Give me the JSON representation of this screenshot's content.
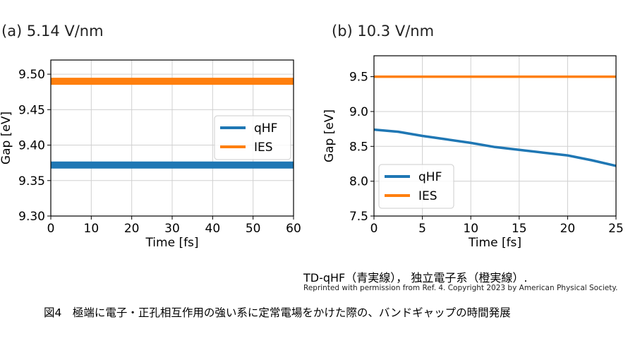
{
  "panels": {
    "a": {
      "title": "(a) 5.14 V/nm"
    },
    "b": {
      "title": "(b) 10.3 V/nm"
    }
  },
  "caption": {
    "main": "TD-qHF（青実線）， 独立電子系（橙実線）.",
    "credit": "Reprinted with permission from Ref. 4. Copyright 2023 by American Physical Society.",
    "figure": "図4　極端に電子・正孔相互作用の強い系に定常電場をかけた際の、バンドギャップの時間発展"
  },
  "colors": {
    "qHF": "#1f77b4",
    "IES": "#ff7f0e"
  },
  "chart_data": [
    {
      "type": "line",
      "title": "(a) 5.14 V/nm",
      "xlabel": "Time [fs]",
      "ylabel": "Gap [eV]",
      "xlim": [
        0,
        60
      ],
      "ylim": [
        9.3,
        9.52
      ],
      "xticks": [
        "0",
        "10",
        "20",
        "30",
        "40",
        "50",
        "60"
      ],
      "yticks": [
        "9.30",
        "9.35",
        "9.40",
        "9.45",
        "9.50"
      ],
      "xtick_values": [
        0,
        10,
        20,
        30,
        40,
        50,
        60
      ],
      "ytick_values": [
        9.3,
        9.35,
        9.4,
        9.45,
        9.5
      ],
      "grid": true,
      "legend": "center-right",
      "series": [
        {
          "name": "qHF",
          "x": [
            0,
            5,
            10,
            15,
            20,
            25,
            30,
            35,
            40,
            45,
            50,
            55,
            60
          ],
          "values": [
            9.372,
            9.372,
            9.372,
            9.372,
            9.372,
            9.372,
            9.372,
            9.372,
            9.372,
            9.372,
            9.372,
            9.372,
            9.372
          ]
        },
        {
          "name": "IES",
          "x": [
            0,
            60
          ],
          "values": [
            9.49,
            9.49
          ]
        }
      ]
    },
    {
      "type": "line",
      "title": "(b) 10.3 V/nm",
      "xlabel": "Time [fs]",
      "ylabel": "Gap [eV]",
      "xlim": [
        0,
        25
      ],
      "ylim": [
        7.5,
        9.8
      ],
      "xticks": [
        "0",
        "5",
        "10",
        "15",
        "20",
        "25"
      ],
      "yticks": [
        "7.5",
        "8.0",
        "8.5",
        "9.0",
        "9.5"
      ],
      "xtick_values": [
        0,
        5,
        10,
        15,
        20,
        25
      ],
      "ytick_values": [
        7.5,
        8.0,
        8.5,
        9.0,
        9.5
      ],
      "grid": true,
      "legend": "lower-left",
      "series": [
        {
          "name": "qHF",
          "x": [
            0,
            2.5,
            5,
            7.5,
            10,
            12.5,
            15,
            17.5,
            20,
            22.5,
            25
          ],
          "values": [
            8.74,
            8.71,
            8.65,
            8.6,
            8.55,
            8.49,
            8.45,
            8.41,
            8.37,
            8.3,
            8.22
          ]
        },
        {
          "name": "IES",
          "x": [
            0,
            25
          ],
          "values": [
            9.5,
            9.5
          ]
        }
      ]
    }
  ]
}
